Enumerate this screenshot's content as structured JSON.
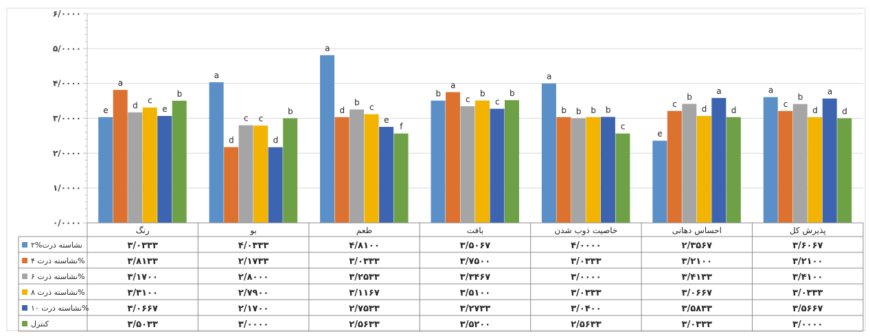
{
  "chart_data": {
    "type": "bar",
    "categories": [
      "رنگ",
      "بو",
      "طعم",
      "بافت",
      "خاصیت ذوب شدن",
      "احساس دهانی",
      "پذیرش کل"
    ],
    "ylim": [
      0,
      6
    ],
    "yticks": [
      0,
      1,
      2,
      3,
      4,
      5,
      6
    ],
    "ytick_labels": [
      "۰/۰۰۰۰",
      "۱/۰۰۰۰",
      "۲/۰۰۰۰",
      "۳/۰۰۰۰",
      "۴/۰۰۰۰",
      "۵/۰۰۰۰",
      "۶/۰۰۰۰"
    ],
    "grid": true,
    "legend": "data-table-bottom",
    "series": [
      {
        "name": "۲%نشاسته ذرت",
        "color": "#5B8FC7",
        "values": [
          3.0333,
          4.0333,
          4.81,
          3.5067,
          4.0,
          2.3567,
          3.6067
        ],
        "letters": [
          "e",
          "a",
          "a",
          "b",
          "a",
          "e",
          "a"
        ],
        "value_labels": [
          "۳/۰۳۳۳",
          "۴/۰۳۳۳",
          "۴/۸۱۰۰",
          "۳/۵۰۶۷",
          "۴/۰۰۰۰",
          "۲/۳۵۶۷",
          "۳/۶۰۶۷"
        ]
      },
      {
        "name": "نشاسته ذرت ۴%",
        "color": "#DD7130",
        "values": [
          3.8133,
          2.1733,
          3.0333,
          3.75,
          3.0333,
          3.21,
          3.21
        ],
        "letters": [
          "a",
          "d",
          "d",
          "a",
          "b",
          "c",
          "c"
        ],
        "value_labels": [
          "۳/۸۱۳۳",
          "۲/۱۷۳۳",
          "۳/۰۳۳۳",
          "۳/۷۵۰۰",
          "۳/۰۳۳۳",
          "۳/۲۱۰۰",
          "۳/۲۱۰۰"
        ]
      },
      {
        "name": "نشاسته ذرت ۶%",
        "color": "#A5A5A5",
        "values": [
          3.17,
          2.8,
          3.2533,
          3.3467,
          3.0,
          3.4133,
          3.41
        ],
        "letters": [
          "d",
          "c",
          "b",
          "c",
          "b",
          "b",
          "b"
        ],
        "value_labels": [
          "۳/۱۷۰۰",
          "۲/۸۰۰۰",
          "۳/۲۵۳۳",
          "۳/۳۴۶۷",
          "۳/۰۰۰۰",
          "۳/۴۱۳۳",
          "۳/۴۱۰۰"
        ]
      },
      {
        "name": "نشاسته ذرت ۸%",
        "color": "#F2B400",
        "values": [
          3.31,
          2.79,
          3.1167,
          3.51,
          3.0333,
          3.0667,
          3.0333
        ],
        "letters": [
          "c",
          "c",
          "c",
          "b",
          "b",
          "d",
          "d"
        ],
        "value_labels": [
          "۳/۳۱۰۰",
          "۲/۷۹۰۰",
          "۳/۱۱۶۷",
          "۳/۵۱۰۰",
          "۳/۰۳۳۳",
          "۳/۰۶۶۷",
          "۳/۰۳۳۳"
        ]
      },
      {
        "name": "نشاسته ذرت ۱۰%",
        "color": "#3C64B0",
        "values": [
          3.0667,
          2.17,
          2.7533,
          3.2733,
          3.04,
          3.5833,
          3.5667
        ],
        "letters": [
          "e",
          "d",
          "e",
          "c",
          "b",
          "a",
          "a"
        ],
        "value_labels": [
          "۳/۰۶۶۷",
          "۲/۱۷۰۰",
          "۲/۷۵۳۳",
          "۳/۲۷۳۳",
          "۳/۰۴۰۰",
          "۳/۵۸۳۳",
          "۳/۵۶۶۷"
        ]
      },
      {
        "name": "کنترل",
        "color": "#6EA145",
        "values": [
          3.5033,
          3.0,
          2.5633,
          3.52,
          2.5633,
          3.0333,
          3.0
        ],
        "letters": [
          "b",
          "b",
          "f",
          "b",
          "c",
          "d",
          "d"
        ],
        "value_labels": [
          "۳/۵۰۳۳",
          "۳/۰۰۰۰",
          "۲/۵۶۳۳",
          "۳/۵۲۰۰",
          "۲/۵۶۳۳",
          "۳/۰۳۳۳",
          "۳/۰۰۰۰"
        ]
      }
    ]
  }
}
